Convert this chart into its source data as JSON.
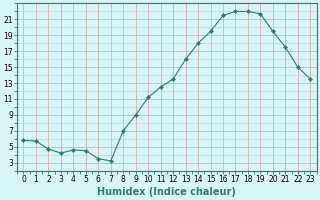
{
  "x": [
    0,
    1,
    2,
    3,
    4,
    5,
    6,
    7,
    8,
    9,
    10,
    11,
    12,
    13,
    14,
    15,
    16,
    17,
    18,
    19,
    20,
    21,
    22,
    23
  ],
  "y": [
    5.8,
    5.7,
    4.7,
    4.2,
    4.6,
    4.5,
    3.5,
    3.2,
    7.0,
    9.0,
    11.2,
    12.5,
    13.5,
    16.0,
    18.0,
    19.5,
    21.5,
    22.0,
    22.0,
    21.7,
    19.5,
    17.5,
    15.0,
    13.5
  ],
  "line_color": "#2e7d6e",
  "marker": "D",
  "marker_size": 2,
  "bg_color": "#d8f5f5",
  "grid_color_major": "#d8a0a0",
  "grid_color_minor": "#c8c8c8",
  "xlabel": "Humidex (Indice chaleur)",
  "xlim": [
    -0.5,
    23.5
  ],
  "ylim": [
    2,
    23
  ],
  "yticks": [
    3,
    5,
    7,
    9,
    11,
    13,
    15,
    17,
    19,
    21
  ],
  "xticks": [
    0,
    1,
    2,
    3,
    4,
    5,
    6,
    7,
    8,
    9,
    10,
    11,
    12,
    13,
    14,
    15,
    16,
    17,
    18,
    19,
    20,
    21,
    22,
    23
  ],
  "tick_fontsize": 5.5,
  "label_fontsize": 7.0
}
